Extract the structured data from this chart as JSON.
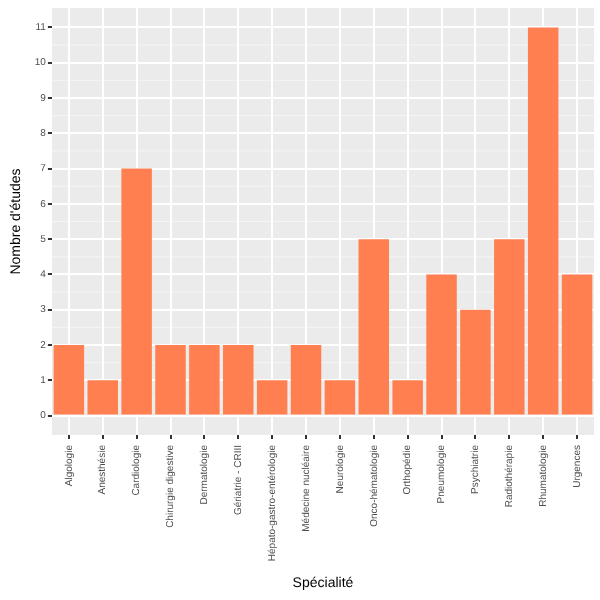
{
  "chart_data": {
    "type": "bar",
    "xlabel": "Spécialité",
    "ylabel": "Nombre d'études",
    "categories": [
      "Algologie",
      "Anesthésie",
      "Cardiologie",
      "Chirurgie digestive",
      "Dermatologie",
      "Gériatrie - CRIII",
      "Hépato-gastro-entérologie",
      "Médecine nucléaire",
      "Neurologie",
      "Onco-hématologie",
      "Orthopédie",
      "Pneumologie",
      "Psychiatrie",
      "Radiothérapie",
      "Rhumatologie",
      "Urgences"
    ],
    "values": [
      2,
      1,
      7,
      2,
      2,
      2,
      1,
      2,
      1,
      5,
      1,
      4,
      3,
      5,
      11,
      4
    ],
    "color": "#ff7f50",
    "ylim": [
      -0.55,
      11.55
    ],
    "yticks": [
      0,
      1,
      2,
      3,
      4,
      5,
      6,
      7,
      8,
      9,
      10,
      11
    ],
    "grid": true
  }
}
